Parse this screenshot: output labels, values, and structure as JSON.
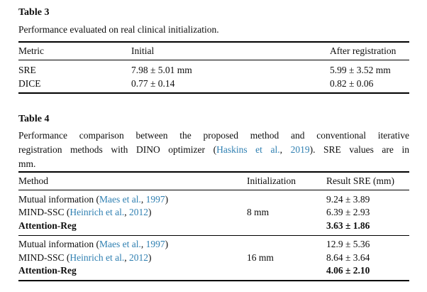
{
  "page": {
    "background_color": "#ffffff",
    "text_color": "#0d0d0d",
    "link_color": "#2e7fb1"
  },
  "table3": {
    "title": "Table 3",
    "caption": "Performance evaluated on real clinical initialization.",
    "columns": [
      "Metric",
      "Initial",
      "After registration"
    ],
    "rows": [
      {
        "metric": "SRE",
        "initial": "7.98 ± 5.01 mm",
        "after": "5.99 ± 3.52 mm"
      },
      {
        "metric": "DICE",
        "initial": "0.77 ± 0.14",
        "after": "0.82 ± 0.06"
      }
    ]
  },
  "table4": {
    "title": "Table 4",
    "caption_lines": [
      {
        "segments": [
          {
            "text": "Performance comparison between the proposed method and conventional iterative"
          }
        ]
      },
      {
        "segments": [
          {
            "text": "registration methods with DINO optimizer ("
          },
          {
            "text": "Haskins et al.",
            "link": true
          },
          {
            "text": ", "
          },
          {
            "text": "2019",
            "link": true
          },
          {
            "text": "). SRE values are in"
          }
        ]
      },
      {
        "segments": [
          {
            "text": "mm."
          }
        ]
      }
    ],
    "columns": [
      "Method",
      "Initialization",
      "Result SRE (mm)"
    ],
    "groups": [
      {
        "initialization": "8 mm",
        "rows": [
          {
            "method": [
              {
                "text": "Mutual information ("
              },
              {
                "text": "Maes et al.",
                "link": true
              },
              {
                "text": ", "
              },
              {
                "text": "1997",
                "link": true
              },
              {
                "text": ")"
              }
            ],
            "result": "9.24 ± 3.89",
            "bold": false
          },
          {
            "method": [
              {
                "text": "MIND-SSC ("
              },
              {
                "text": "Heinrich et al.",
                "link": true
              },
              {
                "text": ", "
              },
              {
                "text": "2012",
                "link": true
              },
              {
                "text": ")"
              }
            ],
            "result": "6.39 ± 2.93",
            "bold": false
          },
          {
            "method": [
              {
                "text": "Attention-Reg"
              }
            ],
            "result": "3.63 ± 1.86",
            "bold": true
          }
        ]
      },
      {
        "initialization": "16 mm",
        "rows": [
          {
            "method": [
              {
                "text": "Mutual information ("
              },
              {
                "text": "Maes et al.",
                "link": true
              },
              {
                "text": ", "
              },
              {
                "text": "1997",
                "link": true
              },
              {
                "text": ")"
              }
            ],
            "result": "12.9 ± 5.36",
            "bold": false
          },
          {
            "method": [
              {
                "text": "MIND-SSC ("
              },
              {
                "text": "Heinrich et al.",
                "link": true
              },
              {
                "text": ", "
              },
              {
                "text": "2012",
                "link": true
              },
              {
                "text": ")"
              }
            ],
            "result": "8.64 ± 3.64",
            "bold": false
          },
          {
            "method": [
              {
                "text": "Attention-Reg"
              }
            ],
            "result": "4.06 ± 2.10",
            "bold": true
          }
        ]
      }
    ]
  }
}
